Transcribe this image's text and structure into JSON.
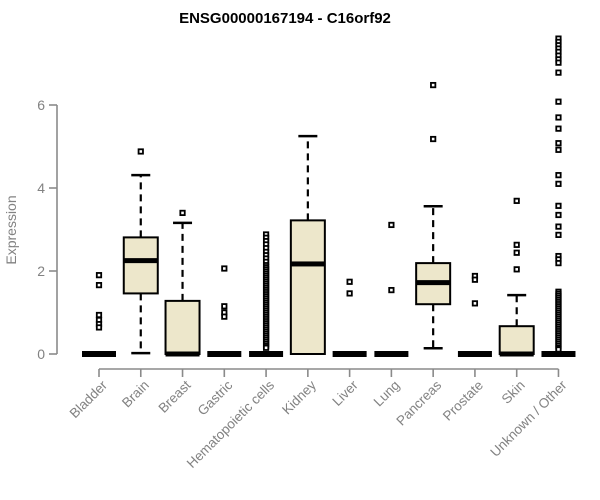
{
  "page": {
    "background": "#ffffff"
  },
  "chart_data": {
    "type": "boxplot",
    "title": "ENSG00000167194 - C16orf92",
    "ylabel": "Expression",
    "xlabel": "",
    "ylim": [
      0,
      6
    ],
    "yticks": [
      "0",
      "2",
      "4",
      "6"
    ],
    "grid": false,
    "legend": "none",
    "colors": {
      "box_fill": "#EDE7CB",
      "box_stroke": "#000000",
      "median": "#000000",
      "outlier": "#000000",
      "axis": "#8a8a8a",
      "tick_label": "#828282",
      "title": "#000000"
    },
    "categories": [
      "Bladder",
      "Brain",
      "Breast",
      "Gastric",
      "Hematopoietic cells",
      "Kidney",
      "Liver",
      "Lung",
      "Pancreas",
      "Prostate",
      "Skin",
      "Unknown / Other"
    ],
    "series": [
      {
        "category": "Bladder",
        "collapsed": true,
        "q1": 0,
        "median": 0,
        "q3": 0,
        "whisker_low": 0,
        "whisker_high": 0,
        "outliers": [
          1.9,
          1.66,
          0.94,
          0.82,
          0.72,
          0.64
        ]
      },
      {
        "category": "Brain",
        "collapsed": false,
        "q1": 1.46,
        "median": 2.25,
        "q3": 2.81,
        "whisker_low": 0.02,
        "whisker_high": 4.31,
        "outliers": [
          4.88
        ]
      },
      {
        "category": "Breast",
        "collapsed": false,
        "q1": 0,
        "median": 0,
        "q3": 1.28,
        "whisker_low": 0,
        "whisker_high": 3.16,
        "outliers": [
          3.4
        ]
      },
      {
        "category": "Gastric",
        "collapsed": true,
        "q1": 0,
        "median": 0,
        "q3": 0,
        "whisker_low": 0,
        "whisker_high": 0,
        "outliers": [
          2.06,
          1.15,
          1.0,
          0.9
        ]
      },
      {
        "category": "Hematopoietic cells",
        "collapsed": true,
        "q1": 0,
        "median": 0,
        "q3": 0,
        "whisker_low": 0,
        "whisker_high": 0,
        "outliers": [
          2.88,
          2.8,
          2.72,
          2.64,
          2.55,
          2.46,
          2.38,
          2.3,
          2.22,
          2.14,
          2.09,
          2.04,
          1.99,
          1.94,
          1.89,
          1.84,
          1.79,
          1.74,
          1.69,
          1.64,
          1.59,
          1.54,
          1.49,
          1.44,
          1.39,
          1.34,
          1.29,
          1.24,
          1.19,
          1.14,
          1.09,
          1.04,
          0.99,
          0.94,
          0.89,
          0.84,
          0.79,
          0.74,
          0.69,
          0.64,
          0.59,
          0.54,
          0.49,
          0.44,
          0.39,
          0.34,
          0.29,
          0.24,
          0.19,
          0.15
        ]
      },
      {
        "category": "Kidney",
        "collapsed": false,
        "q1": 0,
        "median": 2.17,
        "q3": 3.22,
        "whisker_low": 0,
        "whisker_high": 5.25,
        "outliers": []
      },
      {
        "category": "Liver",
        "collapsed": true,
        "q1": 0,
        "median": 0,
        "q3": 0,
        "whisker_low": 0,
        "whisker_high": 0,
        "outliers": [
          1.74,
          1.46
        ]
      },
      {
        "category": "Lung",
        "collapsed": true,
        "q1": 0,
        "median": 0,
        "q3": 0,
        "whisker_low": 0,
        "whisker_high": 0,
        "outliers": [
          3.11,
          1.54
        ]
      },
      {
        "category": "Pancreas",
        "collapsed": false,
        "q1": 1.2,
        "median": 1.72,
        "q3": 2.19,
        "whisker_low": 0.14,
        "whisker_high": 3.56,
        "outliers": [
          6.48,
          5.18
        ]
      },
      {
        "category": "Prostate",
        "collapsed": true,
        "q1": 0,
        "median": 0,
        "q3": 0,
        "whisker_low": 0,
        "whisker_high": 0,
        "outliers": [
          1.88,
          1.79,
          1.22
        ]
      },
      {
        "category": "Skin",
        "collapsed": false,
        "q1": 0,
        "median": 0,
        "q3": 0.67,
        "whisker_low": 0,
        "whisker_high": 1.42,
        "outliers": [
          3.69,
          2.63,
          2.44,
          2.04
        ]
      },
      {
        "category": "Unknown / Other",
        "collapsed": true,
        "q1": 0,
        "median": 0,
        "q3": 0,
        "whisker_low": 0,
        "whisker_high": 0,
        "outliers": [
          7.6,
          7.52,
          7.44,
          7.36,
          7.28,
          7.19,
          7.1,
          7.02,
          6.78,
          6.08,
          5.7,
          5.43,
          5.08,
          4.92,
          4.31,
          4.1,
          3.57,
          3.35,
          3.07,
          2.87,
          2.36,
          2.28,
          2.19,
          1.5,
          1.45,
          1.4,
          1.35,
          1.3,
          1.25,
          1.2,
          1.15,
          1.1,
          1.05,
          1.0,
          0.95,
          0.9,
          0.85,
          0.8,
          0.75,
          0.7,
          0.65,
          0.6,
          0.55,
          0.5,
          0.45,
          0.4,
          0.35,
          0.3,
          0.25,
          0.2,
          0.15,
          0.11
        ]
      }
    ]
  }
}
